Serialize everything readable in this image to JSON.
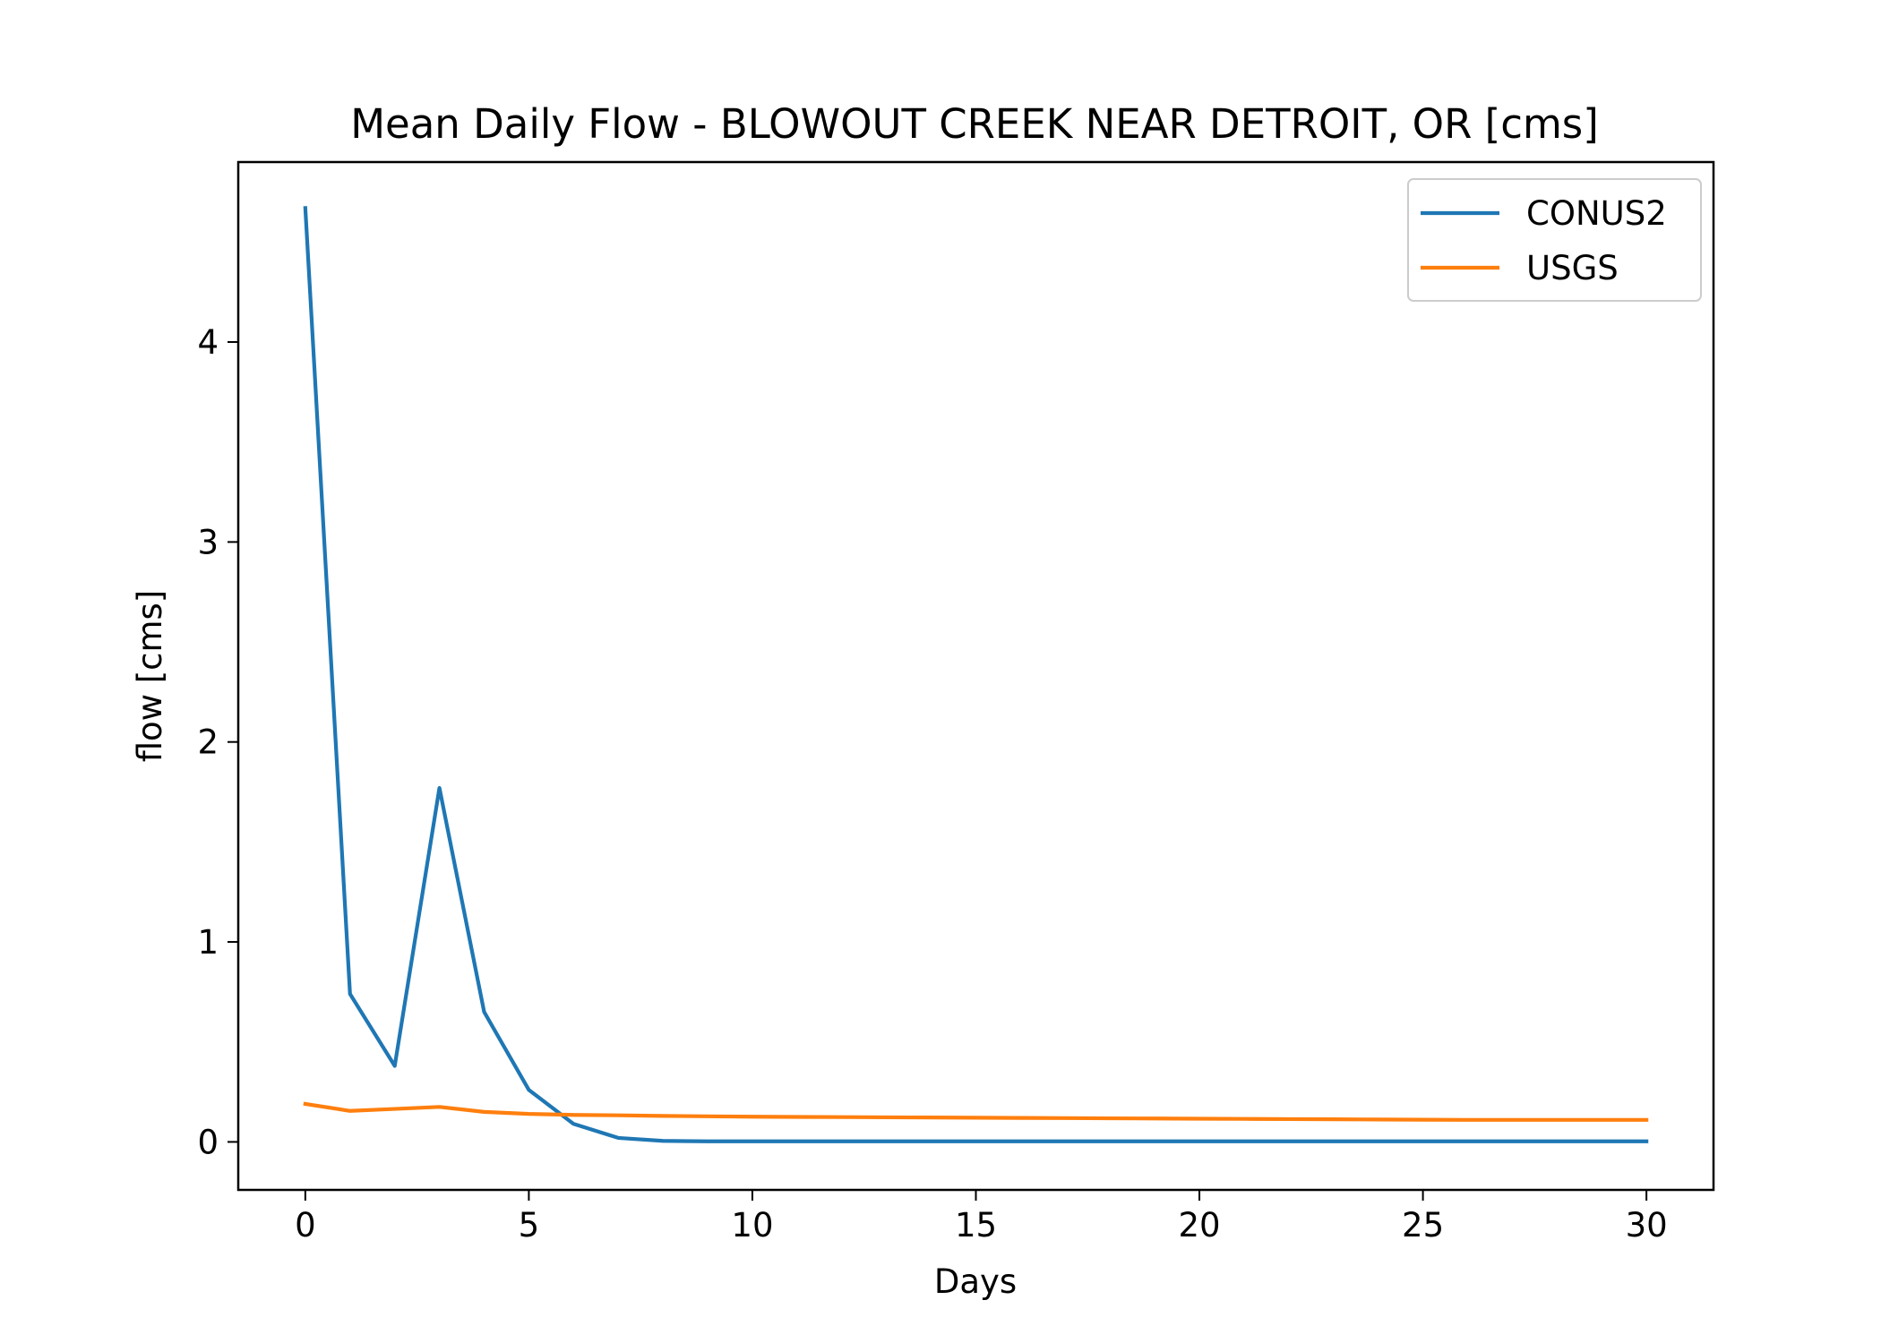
{
  "chart_data": {
    "type": "line",
    "title": "Mean Daily Flow - BLOWOUT CREEK NEAR DETROIT, OR [cms]",
    "xlabel": "Days",
    "ylabel": "flow [cms]",
    "xlim": [
      -1.5,
      31.5
    ],
    "ylim": [
      -0.24,
      4.9
    ],
    "xticks": [
      0,
      5,
      10,
      15,
      20,
      25,
      30
    ],
    "yticks": [
      0,
      1,
      2,
      3,
      4
    ],
    "grid": false,
    "legend_position": "top-right",
    "series": [
      {
        "name": "CONUS2",
        "color": "#1f77b4",
        "x": [
          0,
          1,
          2,
          3,
          4,
          5,
          6,
          7,
          8,
          9,
          10,
          11,
          12,
          13,
          14,
          15,
          16,
          17,
          18,
          19,
          20,
          21,
          22,
          23,
          24,
          25,
          26,
          27,
          28,
          29,
          30
        ],
        "values": [
          4.67,
          0.74,
          0.38,
          1.77,
          0.65,
          0.26,
          0.09,
          0.02,
          0.005,
          0.003,
          0.003,
          0.003,
          0.003,
          0.003,
          0.003,
          0.003,
          0.003,
          0.003,
          0.003,
          0.003,
          0.003,
          0.003,
          0.003,
          0.003,
          0.003,
          0.003,
          0.003,
          0.003,
          0.003,
          0.003,
          0.003
        ]
      },
      {
        "name": "USGS",
        "color": "#ff7f0e",
        "x": [
          0,
          1,
          2,
          3,
          4,
          5,
          6,
          7,
          8,
          9,
          10,
          11,
          12,
          13,
          14,
          15,
          16,
          17,
          18,
          19,
          20,
          21,
          22,
          23,
          24,
          25,
          26,
          27,
          28,
          29,
          30
        ],
        "values": [
          0.19,
          0.155,
          0.165,
          0.175,
          0.15,
          0.14,
          0.135,
          0.133,
          0.13,
          0.128,
          0.126,
          0.125,
          0.124,
          0.123,
          0.122,
          0.121,
          0.12,
          0.119,
          0.118,
          0.117,
          0.116,
          0.115,
          0.114,
          0.113,
          0.112,
          0.111,
          0.11,
          0.11,
          0.11,
          0.11,
          0.11
        ]
      }
    ]
  }
}
